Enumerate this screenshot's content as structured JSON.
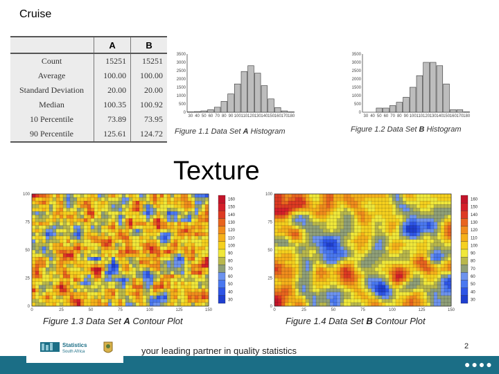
{
  "slide": {
    "header": "Cruise",
    "heading": "Texture",
    "page_number": "2"
  },
  "stats_table": {
    "columns": [
      "",
      "A",
      "B"
    ],
    "rows": [
      {
        "label": "Count",
        "a": "15251",
        "b": "15251"
      },
      {
        "label": "Average",
        "a": "100.00",
        "b": "100.00"
      },
      {
        "label": "Standard Deviation",
        "a": "20.00",
        "b": "20.00"
      },
      {
        "label": "Median",
        "a": "100.35",
        "b": "100.92"
      },
      {
        "label": "10 Percentile",
        "a": "73.89",
        "b": "73.95"
      },
      {
        "label": "90 Percentile",
        "a": "125.61",
        "b": "124.72"
      }
    ]
  },
  "figures": {
    "fig_1_1": {
      "prefix": "Figure 1.1  Data Set ",
      "set": "A",
      "suffix": " Histogram"
    },
    "fig_1_2": {
      "prefix": "Figure 1.2  Data Set ",
      "set": "B",
      "suffix": " Histogram"
    },
    "fig_1_3": {
      "prefix": "Figure 1.3   Data Set ",
      "set": "A",
      "suffix": " Contour Plot"
    },
    "fig_1_4": {
      "prefix": "Figure 1.4   Data Set ",
      "set": "B",
      "suffix": " Contour Plot"
    }
  },
  "chart_data": [
    {
      "type": "bar",
      "categories": [
        "30",
        "40",
        "50",
        "60",
        "70",
        "80",
        "90",
        "100",
        "110",
        "120",
        "130",
        "140",
        "150",
        "160",
        "170",
        "180"
      ],
      "values": [
        20,
        40,
        80,
        150,
        300,
        650,
        1100,
        1700,
        2450,
        2800,
        2350,
        1600,
        800,
        280,
        80,
        20
      ],
      "ylim": [
        0,
        3500
      ],
      "yticks": [
        "0",
        "500",
        "1000",
        "1500",
        "2000",
        "2500",
        "3000",
        "3500"
      ]
    },
    {
      "type": "bar",
      "categories": [
        "30",
        "40",
        "50",
        "60",
        "70",
        "80",
        "90",
        "100",
        "110",
        "120",
        "130",
        "140",
        "150",
        "160",
        "170",
        "180"
      ],
      "values": [
        0,
        0,
        250,
        250,
        400,
        600,
        900,
        1500,
        2200,
        3000,
        3000,
        2800,
        1700,
        150,
        150,
        20
      ],
      "ylim": [
        0,
        3500
      ],
      "yticks": [
        "0",
        "500",
        "1000",
        "1500",
        "2000",
        "2500",
        "3000",
        "3500"
      ]
    },
    {
      "type": "heatmap",
      "x_ticks": [
        "0",
        "25",
        "50",
        "75",
        "100",
        "125",
        "150"
      ],
      "y_ticks": [
        "0",
        "25",
        "50",
        "75",
        "100"
      ],
      "colorbar": [
        "160",
        "150",
        "140",
        "130",
        "120",
        "110",
        "100",
        "90",
        "80",
        "70",
        "60",
        "50",
        "40",
        "30"
      ]
    },
    {
      "type": "heatmap",
      "x_ticks": [
        "0",
        "25",
        "50",
        "75",
        "100",
        "125",
        "150"
      ],
      "y_ticks": [
        "0",
        "25",
        "50",
        "75",
        "100"
      ],
      "colorbar": [
        "160",
        "150",
        "140",
        "130",
        "120",
        "110",
        "100",
        "90",
        "80",
        "70",
        "60",
        "50",
        "40",
        "30"
      ]
    }
  ],
  "footer": {
    "tagline": "your leading partner in quality statistics",
    "logo_line1": "Statistics",
    "logo_line2": "South Africa",
    "dots": "●●●●"
  },
  "colors": {
    "footer_bar": "#1b6e86",
    "table_bg": "#ececec",
    "bar_fill": "#bdbdbd"
  }
}
